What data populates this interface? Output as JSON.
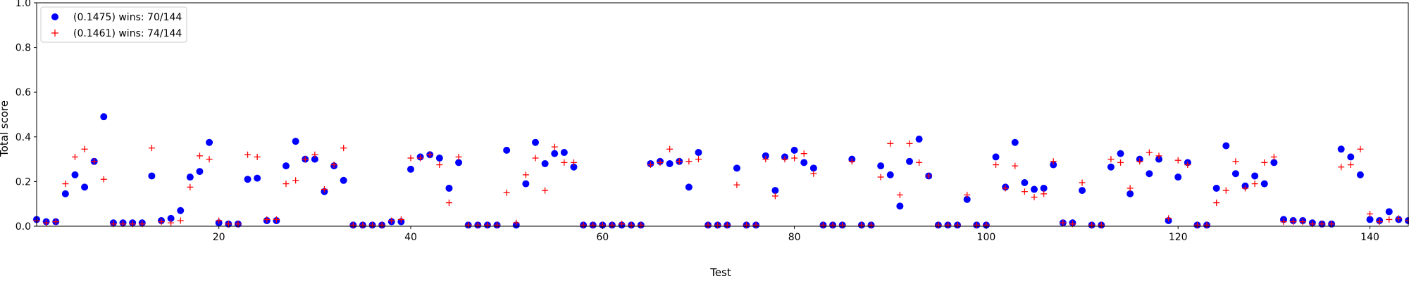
{
  "chart_data": {
    "type": "scatter",
    "xlabel": "Test",
    "ylabel": "Total score",
    "xlim": [
      1,
      144
    ],
    "ylim": [
      0,
      1.0
    ],
    "xticks": [
      20,
      40,
      60,
      80,
      100,
      120,
      140
    ],
    "yticks": [
      0.0,
      0.2,
      0.4,
      0.6,
      0.8,
      1.0
    ],
    "ytick_labels": [
      "0.0",
      "0.2",
      "0.4",
      "0.6",
      "0.8",
      "1.0"
    ],
    "grid": false,
    "legend_position": "upper-left",
    "series": [
      {
        "name": "(0.1475) wins: 70/144",
        "marker": "circle",
        "color": "#0000ff",
        "y": [
          0.03,
          0.02,
          0.02,
          0.145,
          0.23,
          0.175,
          0.29,
          0.49,
          0.015,
          0.015,
          0.015,
          0.015,
          0.225,
          0.025,
          0.035,
          0.07,
          0.22,
          0.245,
          0.375,
          0.015,
          0.01,
          0.01,
          0.21,
          0.215,
          0.025,
          0.025,
          0.27,
          0.38,
          0.3,
          0.3,
          0.155,
          0.27,
          0.205,
          0.005,
          0.005,
          0.005,
          0.005,
          0.02,
          0.02,
          0.255,
          0.31,
          0.32,
          0.305,
          0.17,
          0.285,
          0.005,
          0.005,
          0.005,
          0.005,
          0.34,
          0.005,
          0.19,
          0.375,
          0.28,
          0.325,
          0.33,
          0.265,
          0.005,
          0.005,
          0.005,
          0.005,
          0.005,
          0.005,
          0.005,
          0.28,
          0.29,
          0.28,
          0.29,
          0.175,
          0.33,
          0.005,
          0.005,
          0.005,
          0.26,
          0.005,
          0.005,
          0.315,
          0.16,
          0.31,
          0.34,
          0.285,
          0.26,
          0.005,
          0.005,
          0.005,
          0.3,
          0.005,
          0.005,
          0.27,
          0.23,
          0.09,
          0.29,
          0.39,
          0.225,
          0.005,
          0.005,
          0.005,
          0.12,
          0.005,
          0.005,
          0.31,
          0.175,
          0.375,
          0.195,
          0.165,
          0.17,
          0.275,
          0.015,
          0.015,
          0.16,
          0.005,
          0.005,
          0.265,
          0.325,
          0.145,
          0.3,
          0.235,
          0.3,
          0.025,
          0.22,
          0.285,
          0.005,
          0.005,
          0.17,
          0.36,
          0.235,
          0.18,
          0.225,
          0.19,
          0.285,
          0.03,
          0.025,
          0.025,
          0.015,
          0.01,
          0.01,
          0.345,
          0.31,
          0.23,
          0.03,
          0.025,
          0.065,
          0.03,
          0.025
        ]
      },
      {
        "name": "(0.1461) wins: 74/144",
        "marker": "plus",
        "color": "#ff0000",
        "y": [
          0.025,
          0.015,
          0.02,
          0.19,
          0.31,
          0.345,
          0.29,
          0.21,
          0.01,
          0.01,
          0.01,
          0.01,
          0.35,
          0.02,
          0.015,
          0.025,
          0.175,
          0.315,
          0.3,
          0.025,
          0.01,
          0.01,
          0.32,
          0.31,
          0.03,
          0.03,
          0.19,
          0.205,
          0.3,
          0.32,
          0.165,
          0.275,
          0.35,
          0.005,
          0.005,
          0.005,
          0.005,
          0.025,
          0.03,
          0.305,
          0.305,
          0.32,
          0.275,
          0.105,
          0.31,
          0.005,
          0.005,
          0.005,
          0.005,
          0.15,
          0.015,
          0.23,
          0.305,
          0.16,
          0.355,
          0.285,
          0.285,
          0.005,
          0.005,
          0.005,
          0.005,
          0.01,
          0.005,
          0.005,
          0.275,
          0.285,
          0.345,
          0.29,
          0.29,
          0.3,
          0.005,
          0.005,
          0.005,
          0.185,
          0.005,
          0.005,
          0.3,
          0.135,
          0.3,
          0.305,
          0.325,
          0.235,
          0.005,
          0.005,
          0.005,
          0.29,
          0.005,
          0.005,
          0.22,
          0.37,
          0.14,
          0.37,
          0.285,
          0.225,
          0.005,
          0.005,
          0.005,
          0.14,
          0.005,
          0.005,
          0.275,
          0.17,
          0.27,
          0.155,
          0.13,
          0.145,
          0.29,
          0.015,
          0.01,
          0.195,
          0.005,
          0.005,
          0.3,
          0.285,
          0.17,
          0.29,
          0.33,
          0.315,
          0.035,
          0.295,
          0.275,
          0.005,
          0.005,
          0.105,
          0.16,
          0.29,
          0.17,
          0.19,
          0.285,
          0.31,
          0.02,
          0.02,
          0.02,
          0.01,
          0.01,
          0.01,
          0.265,
          0.275,
          0.345,
          0.055,
          0.02,
          0.03,
          0.035,
          0.025
        ]
      }
    ]
  }
}
